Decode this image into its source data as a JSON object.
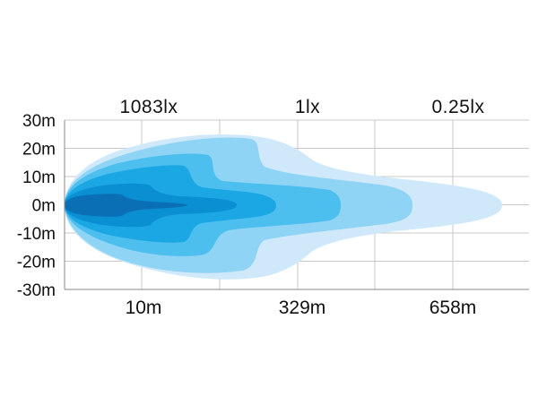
{
  "chart_data": {
    "type": "area",
    "title": "",
    "xlabel": "",
    "ylabel": "",
    "y_tick_labels": [
      "30m",
      "20m",
      "10m",
      "0m",
      "-10m",
      "-20m",
      "-30m"
    ],
    "y_ticks": [
      30,
      20,
      10,
      0,
      -10,
      -20,
      -30
    ],
    "ylim": [
      -30,
      30
    ],
    "grid": true,
    "legend": "none",
    "distance_markers": [
      {
        "distance_label": "10m",
        "illuminance_label": "1083lx"
      },
      {
        "distance_label": "329m",
        "illuminance_label": "1lx"
      },
      {
        "distance_label": "658m",
        "illuminance_label": "0.25lx"
      }
    ],
    "zones": [
      {
        "color": "#cfe9fb",
        "max_half_width_m": 25
      },
      {
        "color": "#8fd4f5",
        "max_half_width_m": 24
      },
      {
        "color": "#4dbfee",
        "max_half_width_m": 19
      },
      {
        "color": "#1aa7e3",
        "max_half_width_m": 13
      },
      {
        "color": "#0b8fd3",
        "max_half_width_m": 8
      },
      {
        "color": "#0a6fb5",
        "max_half_width_m": 4
      }
    ]
  }
}
